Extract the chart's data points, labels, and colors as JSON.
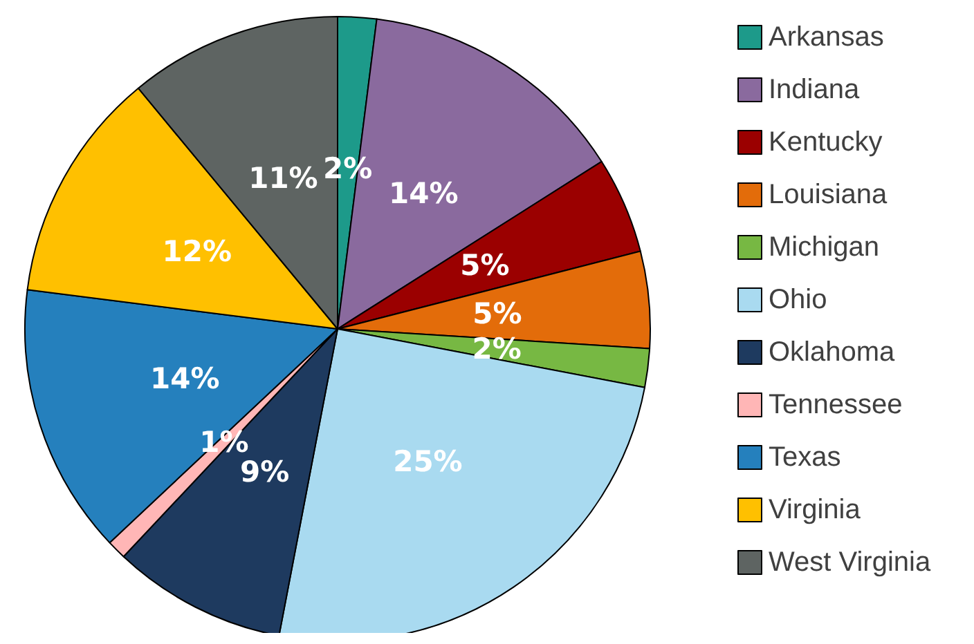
{
  "chart_data": {
    "type": "pie",
    "categories": [
      "Arkansas",
      "Indiana",
      "Kentucky",
      "Louisiana",
      "Michigan",
      "Ohio",
      "Oklahoma",
      "Tennessee",
      "Texas",
      "Virginia",
      "West Virginia"
    ],
    "values": [
      2,
      14,
      5,
      5,
      2,
      25,
      9,
      1,
      14,
      12,
      11
    ],
    "colors": [
      "#1d9a8a",
      "#8a6a9e",
      "#9b0000",
      "#e36c0a",
      "#77b843",
      "#a9daf0",
      "#1e3a5f",
      "#ffb6b6",
      "#2580bd",
      "#ffc000",
      "#5e6462"
    ],
    "value_labels": [
      "2%",
      "14%",
      "5%",
      "5%",
      "2%",
      "25%",
      "9%",
      "1%",
      "14%",
      "12%",
      "11%"
    ],
    "legend": "right"
  }
}
